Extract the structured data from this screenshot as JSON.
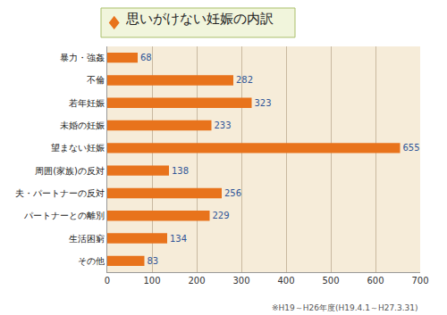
{
  "chart_data": {
    "type": "bar",
    "orientation": "horizontal",
    "title": "思いがけない妊娠の内訳",
    "categories": [
      "暴力・強姦",
      "不倫",
      "若年妊娠",
      "未婚の妊娠",
      "望まない妊娠",
      "周囲(家族)の反対",
      "夫・パートナーの反対",
      "パートナーとの離別",
      "生活困窮",
      "その他"
    ],
    "values": [
      68,
      282,
      323,
      233,
      655,
      138,
      256,
      229,
      134,
      83
    ],
    "color": "#e8731c",
    "xlim": [
      0,
      700
    ],
    "xticks": [
      0,
      100,
      200,
      300,
      400,
      500,
      600,
      700
    ],
    "grid": true,
    "data_labels": true,
    "annotations": [
      "※H19～H26年度(H19.4.1～H27.3.31)"
    ]
  }
}
